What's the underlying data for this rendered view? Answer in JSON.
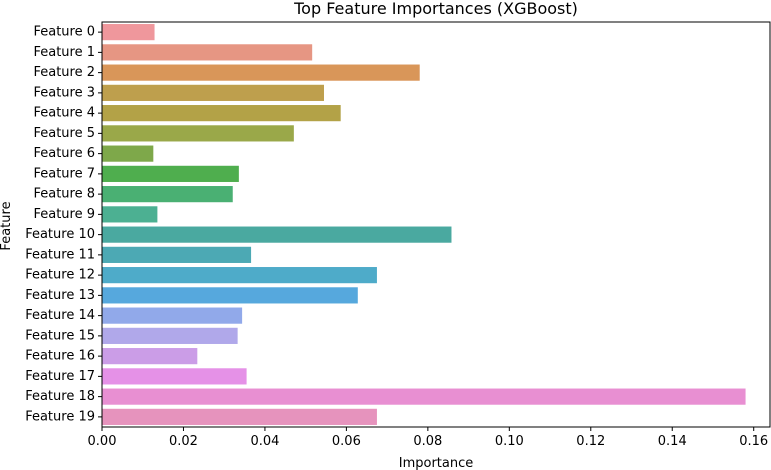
{
  "chart_data": {
    "type": "bar",
    "orientation": "horizontal",
    "title": "Top Feature Importances (XGBoost)",
    "xlabel": "Importance",
    "ylabel": "Feature",
    "xlim": [
      0,
      0.164
    ],
    "xticks": [
      "0.00",
      "0.02",
      "0.04",
      "0.06",
      "0.08",
      "0.10",
      "0.12",
      "0.14",
      "0.16"
    ],
    "grid": false,
    "categories": [
      "Feature 0",
      "Feature 1",
      "Feature 2",
      "Feature 3",
      "Feature 4",
      "Feature 5",
      "Feature 6",
      "Feature 7",
      "Feature 8",
      "Feature 9",
      "Feature 10",
      "Feature 11",
      "Feature 12",
      "Feature 13",
      "Feature 14",
      "Feature 15",
      "Feature 16",
      "Feature 17",
      "Feature 18",
      "Feature 19"
    ],
    "values": [
      0.0129,
      0.0516,
      0.078,
      0.0545,
      0.0586,
      0.0471,
      0.0126,
      0.0336,
      0.0321,
      0.0136,
      0.0858,
      0.0366,
      0.0675,
      0.0628,
      0.0344,
      0.0333,
      0.0234,
      0.0355,
      0.158,
      0.0675
    ],
    "colors": [
      "#ef979c",
      "#e69683",
      "#d99659",
      "#be9f4d",
      "#b3a247",
      "#9aa849",
      "#7ea84a",
      "#4fae4e",
      "#4ab073",
      "#4cb092",
      "#4aa9a0",
      "#4ca9b4",
      "#4eabc9",
      "#56a8dd",
      "#91a9ea",
      "#b0a8ea",
      "#cb9de7",
      "#e591e7",
      "#e88fd2",
      "#e693bd"
    ]
  }
}
